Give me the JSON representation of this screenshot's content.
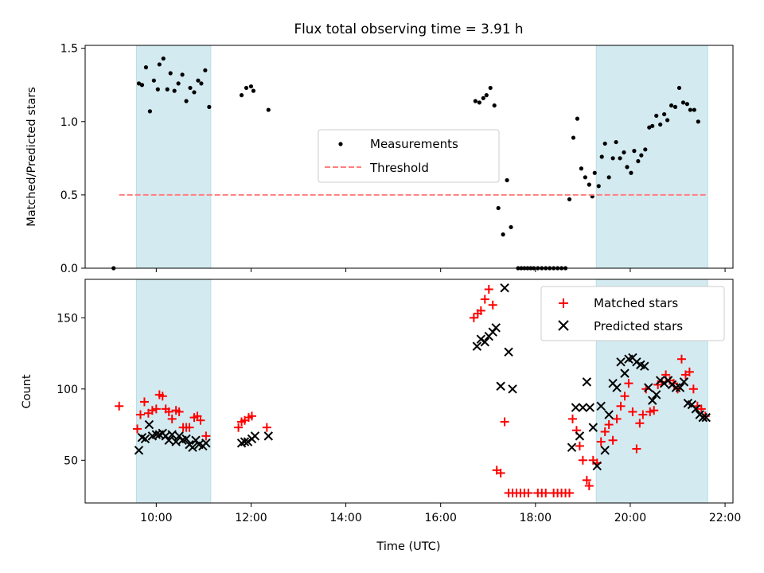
{
  "chart_data": [
    {
      "type": "scatter",
      "title": "Flux total observing time = 3.91 h",
      "ylabel": "Matched/Predicted stars",
      "xlim": [
        "08:30",
        "22:10"
      ],
      "ylim": [
        0,
        1.52
      ],
      "yticks": [
        "0.0",
        "0.5",
        "1.0",
        "1.5"
      ],
      "shaded_intervals": [
        [
          "09:35",
          "11:09"
        ],
        [
          "19:17",
          "21:38"
        ]
      ],
      "shade_color": "#d3eaf0",
      "legend": {
        "position": "center",
        "entries": [
          "Measurements",
          "Threshold"
        ]
      },
      "series": [
        {
          "name": "Measurements",
          "marker": "dot",
          "color": "#000000",
          "points": [
            [
              "09:06",
              0.0
            ],
            [
              "09:38",
              1.26
            ],
            [
              "09:42",
              1.25
            ],
            [
              "09:47",
              1.37
            ],
            [
              "09:52",
              1.07
            ],
            [
              "09:57",
              1.28
            ],
            [
              "10:02",
              1.22
            ],
            [
              "10:04",
              1.39
            ],
            [
              "10:09",
              1.43
            ],
            [
              "10:14",
              1.22
            ],
            [
              "10:18",
              1.33
            ],
            [
              "10:23",
              1.21
            ],
            [
              "10:28",
              1.26
            ],
            [
              "10:33",
              1.32
            ],
            [
              "10:38",
              1.14
            ],
            [
              "10:43",
              1.23
            ],
            [
              "10:48",
              1.2
            ],
            [
              "10:53",
              1.28
            ],
            [
              "10:57",
              1.26
            ],
            [
              "11:02",
              1.35
            ],
            [
              "11:07",
              1.1
            ],
            [
              "11:48",
              1.18
            ],
            [
              "11:54",
              1.23
            ],
            [
              "12:00",
              1.24
            ],
            [
              "12:03",
              1.21
            ],
            [
              "12:22",
              1.08
            ],
            [
              "16:44",
              1.14
            ],
            [
              "16:49",
              1.13
            ],
            [
              "16:54",
              1.16
            ],
            [
              "16:58",
              1.18
            ],
            [
              "17:03",
              1.23
            ],
            [
              "17:08",
              1.11
            ],
            [
              "17:13",
              0.41
            ],
            [
              "17:19",
              0.23
            ],
            [
              "17:24",
              0.6
            ],
            [
              "17:29",
              0.28
            ],
            [
              "17:38",
              0.0
            ],
            [
              "17:42",
              0.0
            ],
            [
              "17:46",
              0.0
            ],
            [
              "17:50",
              0.0
            ],
            [
              "17:54",
              0.0
            ],
            [
              "17:58",
              0.0
            ],
            [
              "18:03",
              0.0
            ],
            [
              "18:08",
              0.0
            ],
            [
              "18:13",
              0.0
            ],
            [
              "18:18",
              0.0
            ],
            [
              "18:23",
              0.0
            ],
            [
              "18:28",
              0.0
            ],
            [
              "18:33",
              0.0
            ],
            [
              "18:38",
              0.0
            ],
            [
              "18:43",
              0.47
            ],
            [
              "18:48",
              0.89
            ],
            [
              "18:53",
              1.02
            ],
            [
              "18:58",
              0.68
            ],
            [
              "19:03",
              0.62
            ],
            [
              "19:08",
              0.57
            ],
            [
              "19:12",
              0.49
            ],
            [
              "19:15",
              0.65
            ],
            [
              "19:20",
              0.56
            ],
            [
              "19:24",
              0.76
            ],
            [
              "19:28",
              0.85
            ],
            [
              "19:33",
              0.62
            ],
            [
              "19:38",
              0.75
            ],
            [
              "19:42",
              0.86
            ],
            [
              "19:47",
              0.75
            ],
            [
              "19:52",
              0.79
            ],
            [
              "19:56",
              0.69
            ],
            [
              "20:01",
              0.65
            ],
            [
              "20:05",
              0.8
            ],
            [
              "20:10",
              0.73
            ],
            [
              "20:14",
              0.77
            ],
            [
              "20:19",
              0.81
            ],
            [
              "20:24",
              0.96
            ],
            [
              "20:28",
              0.97
            ],
            [
              "20:33",
              1.04
            ],
            [
              "20:38",
              0.98
            ],
            [
              "20:43",
              1.05
            ],
            [
              "20:47",
              1.01
            ],
            [
              "20:52",
              1.11
            ],
            [
              "20:57",
              1.1
            ],
            [
              "21:02",
              1.23
            ],
            [
              "21:07",
              1.13
            ],
            [
              "21:12",
              1.12
            ],
            [
              "21:16",
              1.08
            ],
            [
              "21:21",
              1.08
            ],
            [
              "21:26",
              1.0
            ]
          ]
        },
        {
          "name": "Threshold",
          "line": "dashed",
          "color": "#ff7f7f",
          "points": [
            [
              "09:13",
              0.5
            ],
            [
              "21:38",
              0.5
            ]
          ]
        }
      ]
    },
    {
      "type": "scatter",
      "xlabel": "Time (UTC)",
      "ylabel": "Count",
      "xlim": [
        "08:30",
        "22:10"
      ],
      "ylim": [
        20,
        177
      ],
      "yticks": [
        "50",
        "100",
        "150"
      ],
      "xticks": [
        "10:00",
        "12:00",
        "14:00",
        "16:00",
        "18:00",
        "20:00",
        "22:00"
      ],
      "shaded_intervals": [
        [
          "09:35",
          "11:09"
        ],
        [
          "19:17",
          "21:38"
        ]
      ],
      "shade_color": "#d3eaf0",
      "legend": {
        "position": "top-right",
        "entries": [
          "Matched stars",
          "Predicted stars"
        ]
      },
      "series": [
        {
          "name": "Matched stars",
          "marker": "plus",
          "color": "#ff0000",
          "points": [
            [
              "09:13",
              88
            ],
            [
              "09:36",
              72
            ],
            [
              "09:40",
              82
            ],
            [
              "09:45",
              91
            ],
            [
              "09:50",
              83
            ],
            [
              "09:55",
              85
            ],
            [
              "10:00",
              86
            ],
            [
              "10:04",
              96
            ],
            [
              "10:08",
              95
            ],
            [
              "10:12",
              86
            ],
            [
              "10:16",
              84
            ],
            [
              "10:20",
              79
            ],
            [
              "10:25",
              85
            ],
            [
              "10:29",
              84
            ],
            [
              "10:34",
              73
            ],
            [
              "10:38",
              73
            ],
            [
              "10:42",
              73
            ],
            [
              "10:48",
              80
            ],
            [
              "10:52",
              81
            ],
            [
              "10:56",
              78
            ],
            [
              "11:03",
              67
            ],
            [
              "11:44",
              73
            ],
            [
              "11:48",
              77
            ],
            [
              "11:52",
              78
            ],
            [
              "11:57",
              80
            ],
            [
              "12:01",
              81
            ],
            [
              "12:20",
              73
            ],
            [
              "16:42",
              150
            ],
            [
              "16:47",
              153
            ],
            [
              "16:51",
              155
            ],
            [
              "16:56",
              163
            ],
            [
              "17:01",
              170
            ],
            [
              "17:06",
              159
            ],
            [
              "17:11",
              43
            ],
            [
              "17:16",
              41
            ],
            [
              "17:21",
              77
            ],
            [
              "17:26",
              27
            ],
            [
              "17:31",
              27
            ],
            [
              "17:36",
              27
            ],
            [
              "17:41",
              27
            ],
            [
              "17:46",
              27
            ],
            [
              "17:51",
              27
            ],
            [
              "18:03",
              27
            ],
            [
              "18:08",
              27
            ],
            [
              "18:13",
              27
            ],
            [
              "18:23",
              27
            ],
            [
              "18:28",
              27
            ],
            [
              "18:33",
              27
            ],
            [
              "18:38",
              27
            ],
            [
              "18:43",
              27
            ],
            [
              "18:47",
              79
            ],
            [
              "18:52",
              71
            ],
            [
              "18:56",
              60
            ],
            [
              "19:00",
              50
            ],
            [
              "19:05",
              36
            ],
            [
              "19:08",
              32
            ],
            [
              "19:13",
              50
            ],
            [
              "19:18",
              48
            ],
            [
              "19:23",
              63
            ],
            [
              "19:28",
              70
            ],
            [
              "19:33",
              75
            ],
            [
              "19:38",
              64
            ],
            [
              "19:43",
              79
            ],
            [
              "19:48",
              88
            ],
            [
              "19:53",
              95
            ],
            [
              "19:58",
              104
            ],
            [
              "20:03",
              84
            ],
            [
              "20:08",
              58
            ],
            [
              "20:12",
              76
            ],
            [
              "20:16",
              82
            ],
            [
              "20:20",
              100
            ],
            [
              "20:25",
              84
            ],
            [
              "20:30",
              85
            ],
            [
              "20:35",
              103
            ],
            [
              "20:40",
              105
            ],
            [
              "20:45",
              110
            ],
            [
              "20:50",
              106
            ],
            [
              "20:55",
              104
            ],
            [
              "21:00",
              100
            ],
            [
              "21:05",
              121
            ],
            [
              "21:10",
              110
            ],
            [
              "21:15",
              112
            ],
            [
              "21:20",
              100
            ],
            [
              "21:25",
              88
            ],
            [
              "21:30",
              86
            ],
            [
              "21:35",
              81
            ]
          ]
        },
        {
          "name": "Predicted stars",
          "marker": "x",
          "color": "#000000",
          "points": [
            [
              "09:38",
              57
            ],
            [
              "09:42",
              66
            ],
            [
              "09:46",
              65
            ],
            [
              "09:51",
              75
            ],
            [
              "09:55",
              67
            ],
            [
              "10:00",
              68
            ],
            [
              "10:04",
              68
            ],
            [
              "10:08",
              69
            ],
            [
              "10:12",
              67
            ],
            [
              "10:16",
              64
            ],
            [
              "10:20",
              68
            ],
            [
              "10:25",
              63
            ],
            [
              "10:29",
              67
            ],
            [
              "10:33",
              64
            ],
            [
              "10:38",
              65
            ],
            [
              "10:42",
              61
            ],
            [
              "10:46",
              59
            ],
            [
              "10:50",
              64
            ],
            [
              "10:54",
              61
            ],
            [
              "10:59",
              60
            ],
            [
              "11:03",
              62
            ],
            [
              "11:48",
              62
            ],
            [
              "11:52",
              63
            ],
            [
              "11:56",
              63
            ],
            [
              "12:01",
              65
            ],
            [
              "12:05",
              67
            ],
            [
              "12:22",
              67
            ],
            [
              "16:46",
              130
            ],
            [
              "16:51",
              135
            ],
            [
              "16:56",
              133
            ],
            [
              "17:01",
              137
            ],
            [
              "17:06",
              140
            ],
            [
              "17:10",
              143
            ],
            [
              "17:16",
              102
            ],
            [
              "17:21",
              171
            ],
            [
              "17:26",
              126
            ],
            [
              "17:31",
              100
            ],
            [
              "18:46",
              59
            ],
            [
              "18:51",
              87
            ],
            [
              "18:56",
              67
            ],
            [
              "19:00",
              87
            ],
            [
              "19:05",
              105
            ],
            [
              "19:09",
              87
            ],
            [
              "19:13",
              73
            ],
            [
              "19:18",
              46
            ],
            [
              "19:23",
              88
            ],
            [
              "19:28",
              57
            ],
            [
              "19:33",
              82
            ],
            [
              "19:38",
              104
            ],
            [
              "19:43",
              101
            ],
            [
              "19:48",
              119
            ],
            [
              "19:53",
              111
            ],
            [
              "19:58",
              121
            ],
            [
              "20:03",
              122
            ],
            [
              "20:08",
              119
            ],
            [
              "20:13",
              117
            ],
            [
              "20:18",
              116
            ],
            [
              "20:23",
              101
            ],
            [
              "20:28",
              92
            ],
            [
              "20:33",
              96
            ],
            [
              "20:38",
              106
            ],
            [
              "20:43",
              104
            ],
            [
              "20:48",
              106
            ],
            [
              "20:53",
              103
            ],
            [
              "20:58",
              101
            ],
            [
              "21:03",
              101
            ],
            [
              "21:08",
              105
            ],
            [
              "21:13",
              90
            ],
            [
              "21:18",
              89
            ],
            [
              "21:23",
              86
            ],
            [
              "21:28",
              82
            ],
            [
              "21:32",
              80
            ],
            [
              "21:36",
              80
            ]
          ]
        }
      ]
    }
  ]
}
